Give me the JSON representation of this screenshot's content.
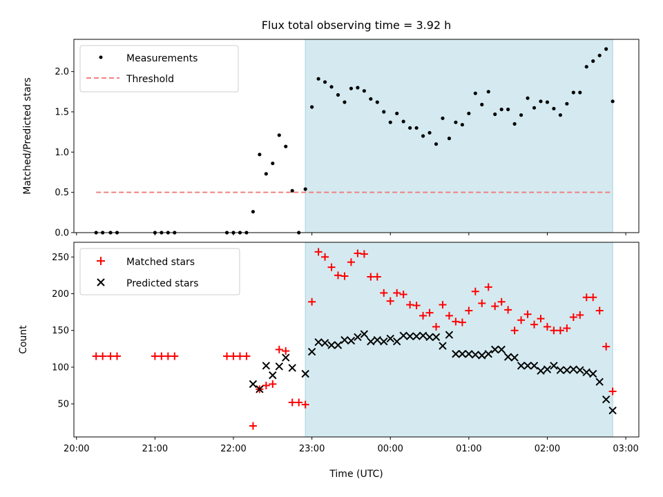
{
  "chart_data": [
    {
      "type": "scatter",
      "title": "Flux total observing time = 3.92 h",
      "xlabel": "",
      "ylabel": "Matched/Predicted stars",
      "xlim": [
        "19:58",
        "03:10"
      ],
      "ylim": [
        0,
        2.4
      ],
      "yticks": [
        0.0,
        0.5,
        1.0,
        1.5,
        2.0
      ],
      "ytick_labels": [
        "0.0",
        "0.5",
        "1.0",
        "1.5",
        "2.0"
      ],
      "shaded_region": {
        "x": [
          "22:55",
          "02:50"
        ],
        "color": "#d4eaf0"
      },
      "legend": {
        "placement": "top-left",
        "entries": [
          "Measurements",
          "Threshold"
        ]
      },
      "series": [
        {
          "name": "Measurements",
          "marker": "dot",
          "color": "#000000",
          "x": [
            "20:15",
            "20:20",
            "20:26",
            "20:31",
            "21:00",
            "21:05",
            "21:10",
            "21:15",
            "21:55",
            "22:00",
            "22:05",
            "22:10",
            "22:15",
            "22:20",
            "22:25",
            "22:30",
            "22:35",
            "22:40",
            "22:45",
            "22:50",
            "22:55",
            "23:00",
            "23:05",
            "23:10",
            "23:15",
            "23:20",
            "23:25",
            "23:30",
            "23:35",
            "23:40",
            "23:45",
            "23:50",
            "23:55",
            "00:00",
            "00:05",
            "00:10",
            "00:15",
            "00:20",
            "00:25",
            "00:30",
            "00:35",
            "00:40",
            "00:45",
            "00:50",
            "00:55",
            "01:00",
            "01:05",
            "01:10",
            "01:15",
            "01:20",
            "01:25",
            "01:30",
            "01:35",
            "01:40",
            "01:45",
            "01:50",
            "01:55",
            "02:00",
            "02:05",
            "02:10",
            "02:15",
            "02:20",
            "02:25",
            "02:30",
            "02:35",
            "02:40",
            "02:45",
            "02:50"
          ],
          "y": [
            0,
            0,
            0,
            0,
            0,
            0,
            0,
            0,
            0,
            0,
            0,
            0,
            0.26,
            0.97,
            0.73,
            0.86,
            1.21,
            1.07,
            0.52,
            0,
            0.54,
            1.56,
            1.91,
            1.87,
            1.81,
            1.71,
            1.62,
            1.79,
            1.8,
            1.76,
            1.66,
            1.62,
            1.5,
            1.37,
            1.48,
            1.38,
            1.3,
            1.3,
            1.2,
            1.24,
            1.1,
            1.42,
            1.17,
            1.37,
            1.34,
            1.48,
            1.73,
            1.59,
            1.75,
            1.47,
            1.53,
            1.53,
            1.35,
            1.46,
            1.67,
            1.55,
            1.63,
            1.62,
            1.54,
            1.46,
            1.6,
            1.74,
            1.74,
            2.06,
            2.13,
            2.2,
            2.28,
            1.63
          ]
        },
        {
          "name": "Threshold",
          "type": "line",
          "style": "dashed",
          "color": "#f08080",
          "x": [
            "20:15",
            "02:50"
          ],
          "y": [
            0.5,
            0.5
          ]
        }
      ]
    },
    {
      "type": "scatter",
      "title": "",
      "xlabel": "Time (UTC)",
      "ylabel": "Count",
      "xlim": [
        "19:58",
        "03:10"
      ],
      "ylim": [
        5,
        270
      ],
      "yticks": [
        50,
        100,
        150,
        200,
        250
      ],
      "ytick_labels": [
        "50",
        "100",
        "150",
        "200",
        "250"
      ],
      "xticks": [
        "20:00",
        "21:00",
        "22:00",
        "23:00",
        "00:00",
        "01:00",
        "02:00",
        "03:00"
      ],
      "shaded_region": {
        "x": [
          "22:55",
          "02:50"
        ],
        "color": "#d4eaf0"
      },
      "legend": {
        "placement": "top-left",
        "entries": [
          "Matched stars",
          "Predicted stars"
        ]
      },
      "series": [
        {
          "name": "Matched stars",
          "marker": "plus",
          "color": "#ff0000",
          "x": [
            "20:15",
            "20:20",
            "20:26",
            "20:31",
            "21:00",
            "21:05",
            "21:10",
            "21:15",
            "21:55",
            "22:00",
            "22:05",
            "22:10",
            "22:15",
            "22:20",
            "22:25",
            "22:30",
            "22:35",
            "22:40",
            "22:45",
            "22:50",
            "22:55",
            "23:00",
            "23:05",
            "23:10",
            "23:15",
            "23:20",
            "23:25",
            "23:30",
            "23:35",
            "23:40",
            "23:45",
            "23:50",
            "23:55",
            "00:00",
            "00:05",
            "00:10",
            "00:15",
            "00:20",
            "00:25",
            "00:30",
            "00:35",
            "00:40",
            "00:45",
            "00:50",
            "00:55",
            "01:00",
            "01:05",
            "01:10",
            "01:15",
            "01:20",
            "01:25",
            "01:30",
            "01:35",
            "01:40",
            "01:45",
            "01:50",
            "01:55",
            "02:00",
            "02:05",
            "02:10",
            "02:15",
            "02:20",
            "02:25",
            "02:30",
            "02:35",
            "02:40",
            "02:45",
            "02:50"
          ],
          "y": [
            115,
            115,
            115,
            115,
            115,
            115,
            115,
            115,
            115,
            115,
            115,
            115,
            20,
            70,
            75,
            77,
            124,
            122,
            52,
            52,
            49,
            189,
            257,
            250,
            236,
            225,
            224,
            243,
            255,
            254,
            223,
            223,
            201,
            190,
            201,
            199,
            185,
            184,
            170,
            174,
            155,
            185,
            170,
            162,
            161,
            177,
            203,
            187,
            209,
            183,
            189,
            178,
            150,
            164,
            172,
            158,
            166,
            155,
            150,
            150,
            153,
            168,
            171,
            195,
            195,
            177,
            128,
            67
          ]
        },
        {
          "name": "Predicted stars",
          "marker": "x",
          "color": "#000000",
          "x": [
            "22:15",
            "22:20",
            "22:25",
            "22:30",
            "22:35",
            "22:40",
            "22:45",
            "22:55",
            "23:00",
            "23:05",
            "23:10",
            "23:15",
            "23:20",
            "23:25",
            "23:30",
            "23:35",
            "23:40",
            "23:45",
            "23:50",
            "23:55",
            "00:00",
            "00:05",
            "00:10",
            "00:15",
            "00:20",
            "00:25",
            "00:30",
            "00:35",
            "00:40",
            "00:45",
            "00:50",
            "00:55",
            "01:00",
            "01:05",
            "01:10",
            "01:15",
            "01:20",
            "01:25",
            "01:30",
            "01:35",
            "01:40",
            "01:45",
            "01:50",
            "01:55",
            "02:00",
            "02:05",
            "02:10",
            "02:15",
            "02:20",
            "02:25",
            "02:30",
            "02:35",
            "02:40",
            "02:45",
            "02:50"
          ],
          "y": [
            77,
            70,
            102,
            89,
            101,
            113,
            99,
            91,
            121,
            134,
            133,
            130,
            130,
            137,
            136,
            141,
            145,
            135,
            137,
            135,
            139,
            135,
            143,
            142,
            142,
            143,
            141,
            141,
            129,
            144,
            118,
            118,
            118,
            117,
            116,
            118,
            124,
            124,
            114,
            113,
            102,
            102,
            102,
            95,
            97,
            102,
            96,
            96,
            97,
            96,
            93,
            91,
            80,
            56,
            41
          ]
        }
      ]
    }
  ]
}
